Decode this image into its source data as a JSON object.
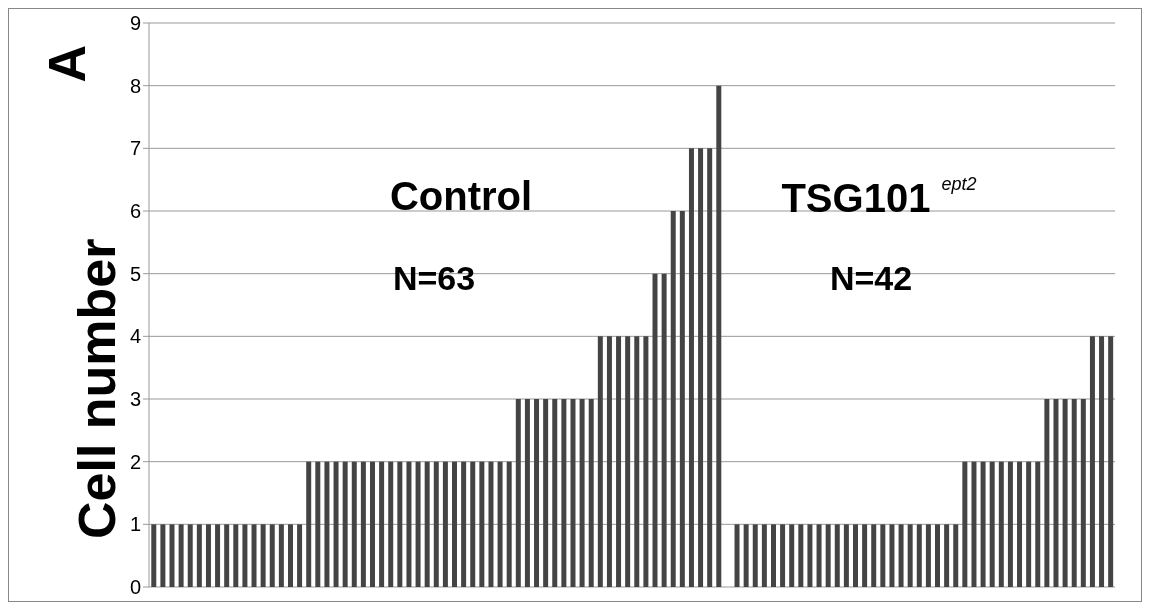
{
  "chart_data": {
    "type": "bar",
    "ylabel": "Cell number",
    "annotations": [
      "A",
      "Control",
      "N=63",
      "TSG101 $^{ept2}$",
      "N=42"
    ],
    "categories": [
      null,
      null,
      null,
      null,
      null,
      null,
      null,
      null,
      null,
      null,
      null,
      null,
      null,
      null,
      null,
      null,
      null,
      null,
      null,
      null,
      null,
      null,
      null,
      null,
      null,
      null,
      null,
      null,
      null,
      null,
      null,
      null,
      null,
      null,
      null,
      null,
      null,
      null,
      null,
      null,
      null,
      null,
      null,
      null,
      null,
      null,
      null,
      null,
      null,
      null,
      null,
      null,
      null,
      null,
      null,
      null,
      null,
      null,
      null,
      null,
      null,
      null,
      null,
      null,
      null,
      null,
      null,
      null,
      null,
      null,
      null,
      null,
      null,
      null,
      null,
      null,
      null,
      null,
      null,
      null,
      null,
      null,
      null,
      null,
      null,
      null,
      null,
      null,
      null,
      null,
      null,
      null,
      null,
      null,
      null,
      null,
      null,
      null,
      null,
      null,
      null,
      null,
      null,
      null,
      null,
      null
    ],
    "values": [
      1,
      1,
      1,
      1,
      1,
      1,
      1,
      1,
      1,
      1,
      1,
      1,
      1,
      1,
      1,
      1,
      1,
      2,
      2,
      2,
      2,
      2,
      2,
      2,
      2,
      2,
      2,
      2,
      2,
      2,
      2,
      2,
      2,
      2,
      2,
      2,
      2,
      2,
      2,
      2,
      3,
      3,
      3,
      3,
      3,
      3,
      3,
      3,
      3,
      4,
      4,
      4,
      4,
      4,
      4,
      5,
      5,
      6,
      6,
      7,
      7,
      7,
      8,
      null,
      1,
      1,
      1,
      1,
      1,
      1,
      1,
      1,
      1,
      1,
      1,
      1,
      1,
      1,
      1,
      1,
      1,
      1,
      1,
      1,
      1,
      1,
      1,
      1,
      1,
      2,
      2,
      2,
      2,
      2,
      2,
      2,
      2,
      2,
      3,
      3,
      3,
      3,
      3,
      4,
      4,
      4
    ],
    "color": "#444444",
    "ylim": [
      0,
      9
    ],
    "yticks": [
      0,
      1,
      2,
      3,
      4,
      5,
      6,
      7,
      8,
      9
    ],
    "grid": "y",
    "tick_labels": "y"
  }
}
